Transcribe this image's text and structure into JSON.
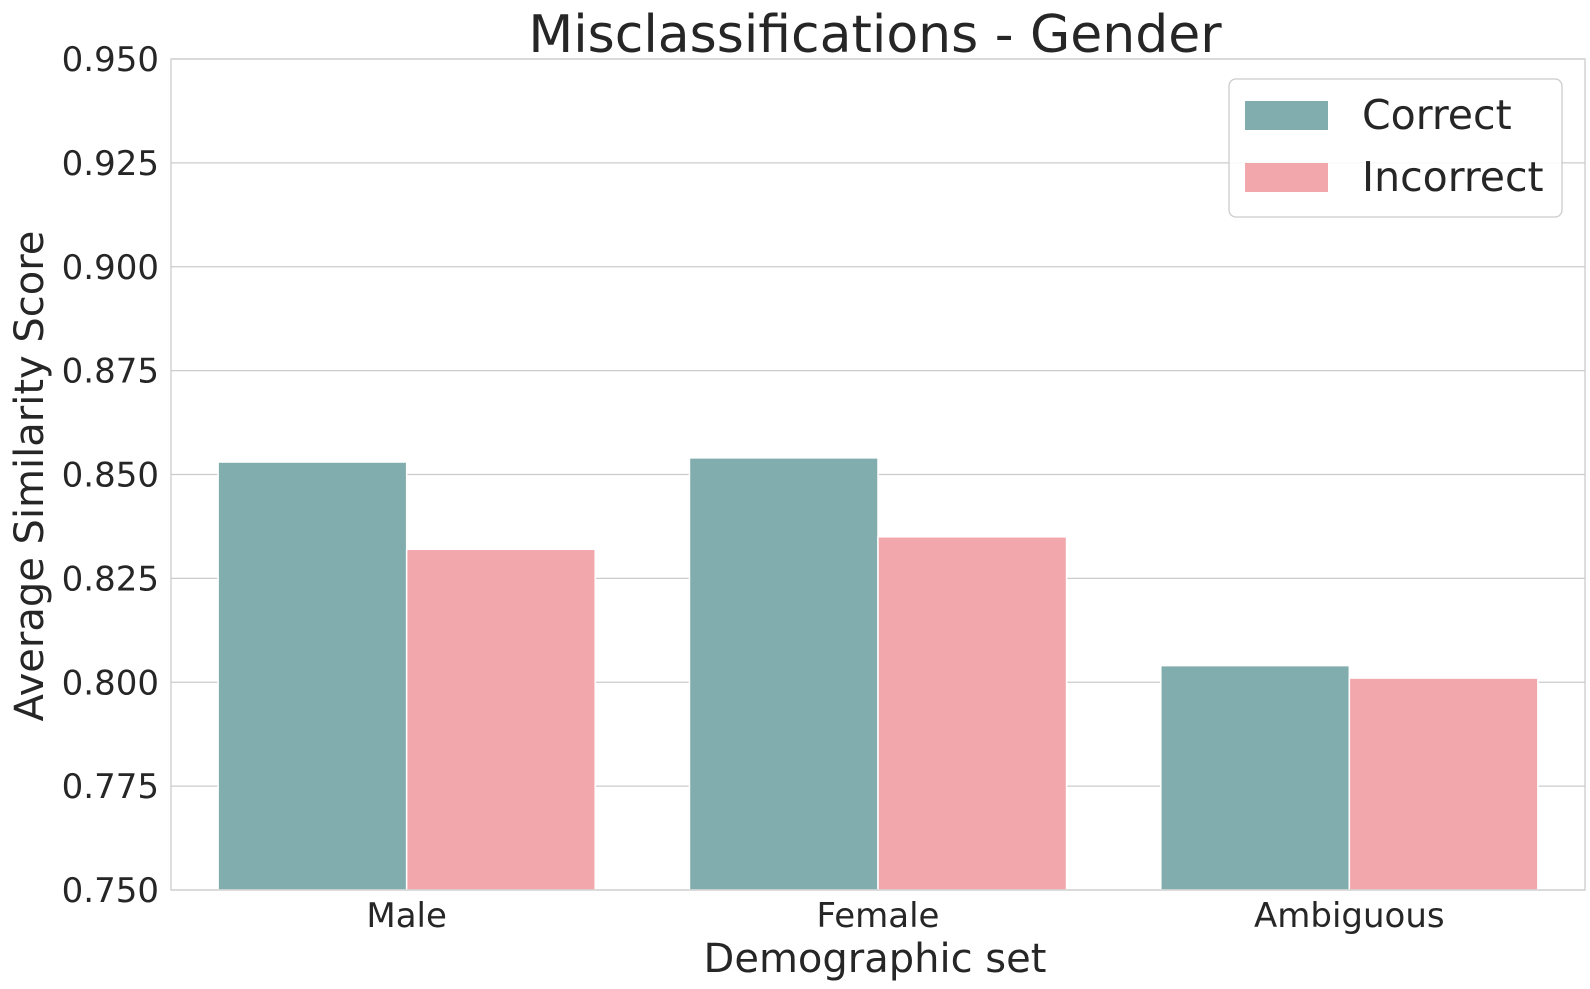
{
  "chart_data": {
    "type": "bar",
    "title": "Misclassifications - Gender",
    "xlabel": "Demographic set",
    "ylabel": "Average Similarity Score",
    "categories": [
      "Male",
      "Female",
      "Ambiguous"
    ],
    "series": [
      {
        "name": "Correct",
        "values": [
          0.853,
          0.854,
          0.804
        ],
        "color": "#82adae"
      },
      {
        "name": "Incorrect",
        "values": [
          0.832,
          0.835,
          0.801
        ],
        "color": "#f2a7ac"
      }
    ],
    "ylim": [
      0.75,
      0.95
    ],
    "yticks": [
      "0.750",
      "0.775",
      "0.800",
      "0.825",
      "0.850",
      "0.875",
      "0.900",
      "0.925",
      "0.950"
    ],
    "grid": true,
    "legend": "top-right"
  }
}
